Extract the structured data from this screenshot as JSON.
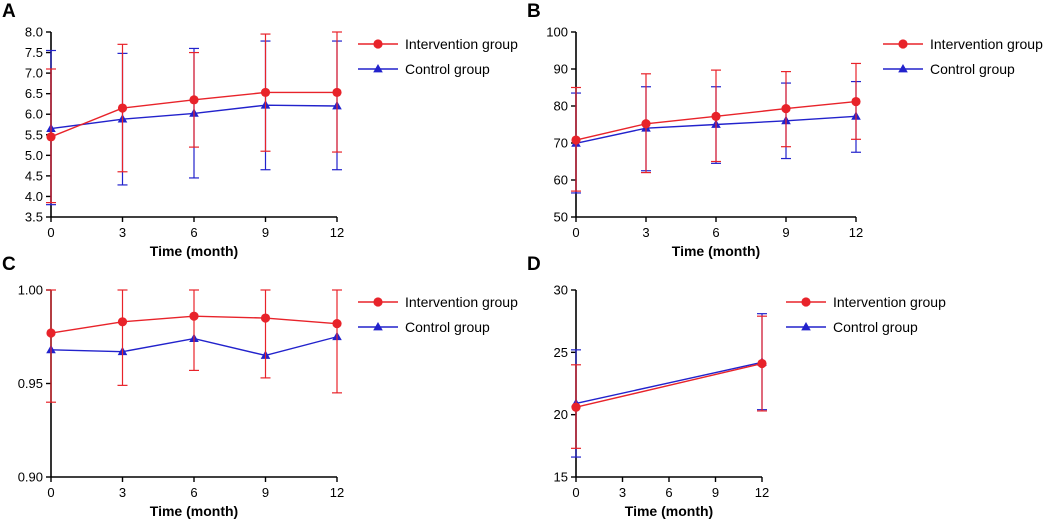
{
  "colors": {
    "intervention": "#e8232a",
    "control": "#2222cc",
    "axis": "#000000"
  },
  "chart_data": [
    {
      "panel_label": "A",
      "type": "line",
      "xlabel": "Time (month)",
      "ylabel": "",
      "x": [
        0,
        3,
        6,
        9,
        12
      ],
      "xticks": [
        "0",
        "3",
        "6",
        "9",
        "12"
      ],
      "xlim": [
        0,
        12
      ],
      "ylim": [
        3.5,
        8.0
      ],
      "yticks": [
        "3.5",
        "4.0",
        "4.5",
        "5.0",
        "5.5",
        "6.0",
        "6.5",
        "7.0",
        "7.5",
        "8.0"
      ],
      "legend_placement": "right",
      "series": [
        {
          "name": "Intervention group",
          "marker": "circle",
          "values": [
            5.45,
            6.15,
            6.35,
            6.53,
            6.53
          ],
          "err_low": [
            3.85,
            4.6,
            5.2,
            5.1,
            5.08
          ],
          "err_high": [
            7.1,
            7.7,
            7.5,
            7.95,
            8.0
          ]
        },
        {
          "name": "Control group",
          "marker": "triangle",
          "values": [
            5.65,
            5.88,
            6.02,
            6.22,
            6.2
          ],
          "err_low": [
            3.8,
            4.28,
            4.45,
            4.65,
            4.65
          ],
          "err_high": [
            7.55,
            7.48,
            7.6,
            7.78,
            7.78
          ]
        }
      ]
    },
    {
      "panel_label": "B",
      "type": "line",
      "xlabel": "Time (month)",
      "ylabel": "",
      "x": [
        0,
        3,
        6,
        9,
        12
      ],
      "xticks": [
        "0",
        "3",
        "6",
        "9",
        "12"
      ],
      "xlim": [
        0,
        12
      ],
      "ylim": [
        50,
        100
      ],
      "yticks": [
        "50",
        "60",
        "70",
        "80",
        "90",
        "100"
      ],
      "legend_placement": "right",
      "series": [
        {
          "name": "Intervention group",
          "marker": "circle",
          "values": [
            70.8,
            75.2,
            77.2,
            79.3,
            81.2
          ],
          "err_low": [
            57,
            62,
            65,
            69,
            71
          ],
          "err_high": [
            85,
            88.7,
            89.7,
            89.3,
            91.5
          ]
        },
        {
          "name": "Control group",
          "marker": "triangle",
          "values": [
            69.9,
            74.0,
            75.0,
            76.0,
            77.2
          ],
          "err_low": [
            56.5,
            62.5,
            64.5,
            65.8,
            67.5
          ],
          "err_high": [
            83.5,
            85.2,
            85.2,
            86.2,
            86.6
          ]
        }
      ]
    },
    {
      "panel_label": "C",
      "type": "line",
      "xlabel": "Time (month)",
      "ylabel": "",
      "x": [
        0,
        3,
        6,
        9,
        12
      ],
      "xticks": [
        "0",
        "3",
        "6",
        "9",
        "12"
      ],
      "xlim": [
        0,
        12
      ],
      "ylim": [
        0.9,
        1.0
      ],
      "yticks": [
        "0.90",
        "0.95",
        "1.00"
      ],
      "legend_placement": "right",
      "series": [
        {
          "name": "Intervention group",
          "marker": "circle",
          "values": [
            0.977,
            0.983,
            0.986,
            0.985,
            0.982
          ],
          "err_low": [
            0.94,
            0.949,
            0.957,
            0.953,
            0.945
          ],
          "err_high": [
            1.0,
            1.0,
            1.0,
            1.0,
            1.0
          ]
        },
        {
          "name": "Control group",
          "marker": "triangle",
          "values": [
            0.968,
            0.967,
            0.974,
            0.965,
            0.975
          ],
          "err_low": null,
          "err_high": null
        }
      ]
    },
    {
      "panel_label": "D",
      "type": "line",
      "xlabel": "Time (month)",
      "ylabel": "",
      "x": [
        0,
        12
      ],
      "xticks": [
        "0",
        "3",
        "6",
        "9",
        "12"
      ],
      "xtick_values": [
        0,
        3,
        6,
        9,
        12
      ],
      "xlim": [
        0,
        12
      ],
      "ylim": [
        15,
        30
      ],
      "yticks": [
        "15",
        "20",
        "25",
        "30"
      ],
      "legend_placement": "right",
      "series": [
        {
          "name": "Intervention group",
          "marker": "circle",
          "values": [
            20.6,
            24.1
          ],
          "err_low": [
            17.3,
            20.3
          ],
          "err_high": [
            24.0,
            27.9
          ]
        },
        {
          "name": "Control group",
          "marker": "triangle",
          "values": [
            20.9,
            24.2
          ],
          "err_low": [
            16.6,
            20.4
          ],
          "err_high": [
            25.2,
            28.1
          ]
        }
      ]
    }
  ]
}
